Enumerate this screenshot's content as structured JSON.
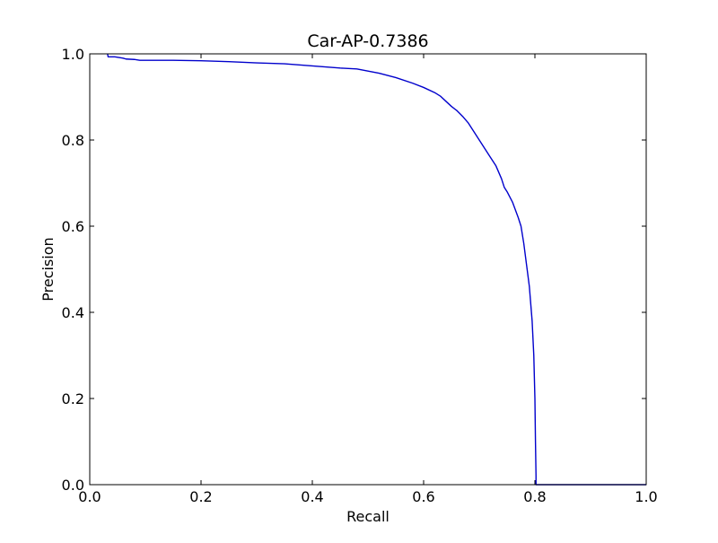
{
  "chart_data": {
    "type": "line",
    "title": "Car-AP-0.7386",
    "xlabel": "Recall",
    "ylabel": "Precision",
    "xlim": [
      0.0,
      1.0
    ],
    "ylim": [
      0.0,
      1.0
    ],
    "xticks": [
      "0.0",
      "0.2",
      "0.4",
      "0.6",
      "0.8",
      "1.0"
    ],
    "yticks": [
      "0.0",
      "0.2",
      "0.4",
      "0.6",
      "0.8",
      "1.0"
    ],
    "grid": false,
    "legend": "none",
    "series": [
      {
        "color": "#0000cc",
        "x": [
          0.032,
          0.033,
          0.045,
          0.06,
          0.065,
          0.08,
          0.09,
          0.1,
          0.15,
          0.2,
          0.25,
          0.3,
          0.35,
          0.4,
          0.45,
          0.48,
          0.5,
          0.52,
          0.55,
          0.58,
          0.6,
          0.62,
          0.63,
          0.64,
          0.65,
          0.66,
          0.67,
          0.68,
          0.69,
          0.7,
          0.71,
          0.72,
          0.73,
          0.74,
          0.745,
          0.75,
          0.76,
          0.77,
          0.775,
          0.78,
          0.785,
          0.79,
          0.795,
          0.798,
          0.8,
          0.801,
          0.802,
          0.802,
          0.85,
          0.9,
          0.95,
          1.0
        ],
        "y": [
          1.0,
          0.993,
          0.993,
          0.99,
          0.988,
          0.987,
          0.985,
          0.985,
          0.985,
          0.984,
          0.982,
          0.979,
          0.977,
          0.972,
          0.967,
          0.965,
          0.96,
          0.955,
          0.945,
          0.932,
          0.922,
          0.91,
          0.902,
          0.89,
          0.878,
          0.868,
          0.855,
          0.84,
          0.82,
          0.8,
          0.78,
          0.76,
          0.74,
          0.71,
          0.69,
          0.68,
          0.655,
          0.62,
          0.6,
          0.56,
          0.51,
          0.46,
          0.38,
          0.3,
          0.2,
          0.1,
          0.02,
          0.0,
          0.0,
          0.0,
          0.0,
          0.0
        ]
      }
    ]
  }
}
